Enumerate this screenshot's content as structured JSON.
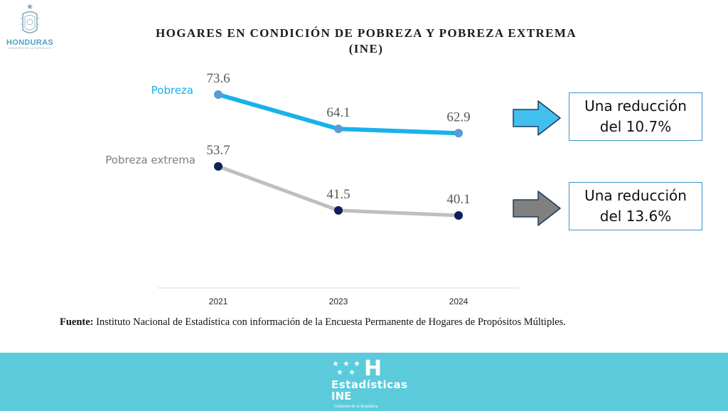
{
  "logo": {
    "name": "HONDURAS",
    "subtitle": "GOBIERNO DE LA REPÚBLICA",
    "emblem": "honduras-coat-of-arms"
  },
  "title": {
    "line1": "HOGARES EN CONDICIÓN DE POBREZA Y POBREZA EXTREMA",
    "line2": "(INE)"
  },
  "chart_data": {
    "type": "line",
    "title": "HOGARES EN CONDICIÓN DE POBREZA Y POBREZA EXTREMA (INE)",
    "categories": [
      "2021",
      "2023",
      "2024"
    ],
    "series": [
      {
        "name": "Pobreza",
        "values": [
          73.6,
          64.1,
          62.9
        ],
        "line_color": "#1ab1ea",
        "marker_color": "#5b9bd5",
        "label_color": "#1ab1ea"
      },
      {
        "name": "Pobreza extrema",
        "values": [
          53.7,
          41.5,
          40.1
        ],
        "line_color": "#bfbfbf",
        "marker_color": "#0e1f5b",
        "label_color": "#7f7f7f"
      }
    ],
    "ylim": [
      0,
      100
    ],
    "grid": false,
    "legend": "inline-left"
  },
  "callouts": [
    {
      "line1": "Una reducción",
      "line2": "del 10.7%",
      "arrow_color": "#41c0f0"
    },
    {
      "line1": "Una reducción",
      "line2": "del 13.6%",
      "arrow_color": "#808080"
    }
  ],
  "source": {
    "label": "Fuente:",
    "text": " Instituto Nacional de Estadística con información de la Encuesta Permanente de Hogares de Propósitos Múltiples."
  },
  "footer": {
    "mark": "H",
    "brand_line1": "Estadísticas",
    "brand_line2": "INE",
    "tagline": "Gobierno de la República",
    "background": "#5bcbdc"
  }
}
